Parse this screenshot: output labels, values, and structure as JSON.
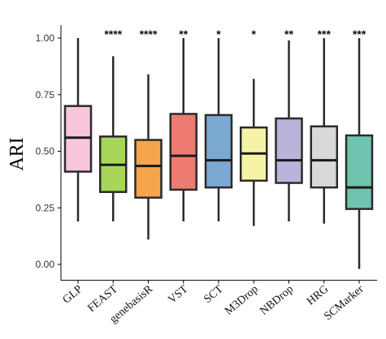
{
  "chart_data": {
    "type": "box",
    "title": "",
    "xlabel": "",
    "ylabel": "ARI",
    "ylim": [
      -0.02,
      1.05
    ],
    "yticks": [
      "0.00",
      "0.25",
      "0.50",
      "0.75",
      "1.00"
    ],
    "ytick_values": [
      0.0,
      0.25,
      0.5,
      0.75,
      1.0
    ],
    "grid": false,
    "legend": "none",
    "categories": [
      "GLP",
      "FEAST",
      "genebasisR",
      "VST",
      "SCT",
      "M3Drop",
      "NBDrop",
      "HRG",
      "SCMarker"
    ],
    "significance": [
      "",
      "****",
      "****",
      "**",
      "*",
      "*",
      "**",
      "***",
      "***"
    ],
    "colors": [
      "#F7C6DC",
      "#A6D65A",
      "#F7A54D",
      "#EE7B72",
      "#7BA8D0",
      "#F7F3A6",
      "#B8B4DA",
      "#D9D9D9",
      "#6EC4AE"
    ],
    "boxes": [
      {
        "min": 0.19,
        "q1": 0.41,
        "median": 0.56,
        "q3": 0.7,
        "max": 1.0
      },
      {
        "min": 0.19,
        "q1": 0.32,
        "median": 0.44,
        "q3": 0.565,
        "max": 0.92
      },
      {
        "min": 0.11,
        "q1": 0.295,
        "median": 0.435,
        "q3": 0.55,
        "max": 0.84
      },
      {
        "min": 0.19,
        "q1": 0.33,
        "median": 0.48,
        "q3": 0.665,
        "max": 1.0
      },
      {
        "min": 0.19,
        "q1": 0.34,
        "median": 0.46,
        "q3": 0.66,
        "max": 1.0
      },
      {
        "min": 0.17,
        "q1": 0.37,
        "median": 0.49,
        "q3": 0.605,
        "max": 0.82
      },
      {
        "min": 0.19,
        "q1": 0.36,
        "median": 0.46,
        "q3": 0.645,
        "max": 0.99
      },
      {
        "min": 0.18,
        "q1": 0.34,
        "median": 0.46,
        "q3": 0.61,
        "max": 1.0
      },
      {
        "min": -0.02,
        "q1": 0.245,
        "median": 0.34,
        "q3": 0.57,
        "max": 1.0
      }
    ]
  }
}
